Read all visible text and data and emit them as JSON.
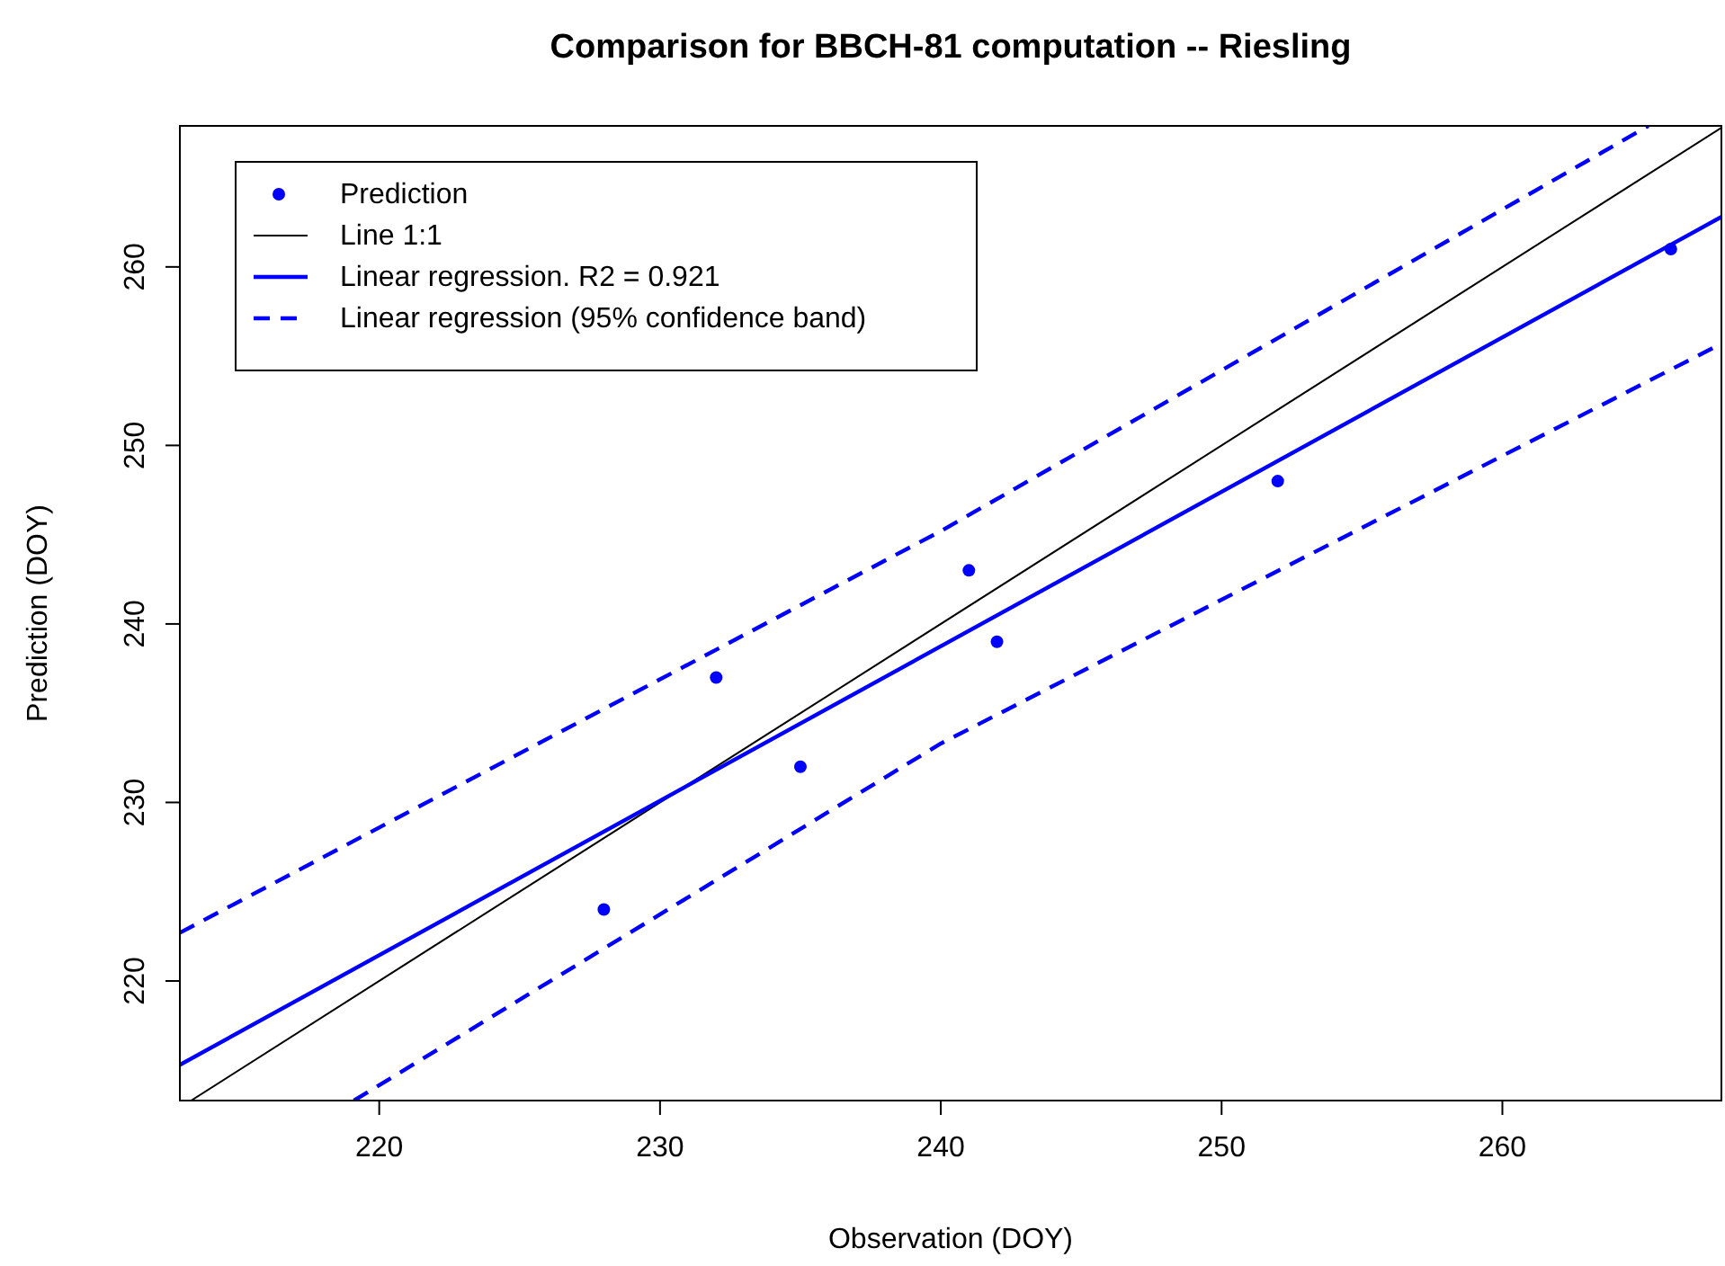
{
  "chart_data": {
    "type": "line",
    "title": "Comparison for BBCH-81 computation -- Riesling",
    "xlabel": "Observation (DOY)",
    "ylabel": "Prediction (DOY)",
    "xlim": [
      212.9,
      267.8
    ],
    "ylim": [
      213.3,
      267.9
    ],
    "xticks": [
      220,
      230,
      240,
      250,
      260
    ],
    "yticks": [
      220,
      230,
      240,
      250,
      260
    ],
    "grid": false,
    "legend": "top left",
    "series": [
      {
        "name": "Prediction",
        "type": "scatter",
        "marker": "circle",
        "color": "#0000ff",
        "x": [
          228,
          232,
          235,
          241,
          242,
          252,
          266
        ],
        "values": [
          224,
          237,
          232,
          243,
          239,
          248,
          261
        ]
      },
      {
        "name": "Line 1:1",
        "marker": "none",
        "line_style": "solid",
        "color": "#000000",
        "x": [
          213.3,
          267.8
        ],
        "values": [
          213.3,
          267.8
        ]
      },
      {
        "name": "Linear regression. R2 = 0.921",
        "marker": "none",
        "line_style": "solid",
        "color": "#0000ff",
        "x": [
          212.9,
          267.8
        ],
        "values": [
          215.3,
          262.8
        ]
      },
      {
        "name": "Linear regression (95% confidence band)",
        "marker": "none",
        "line_style": "dashed",
        "color": "#0000ff",
        "x": [
          212.9,
          240,
          265.2
        ],
        "values": [
          222.7,
          245.2,
          267.9
        ]
      },
      {
        "marker": "none",
        "line_style": "dashed",
        "color": "#0000ff",
        "x": [
          219.1,
          240,
          267.8
        ],
        "values": [
          213.3,
          233.3,
          255.7
        ]
      }
    ]
  }
}
